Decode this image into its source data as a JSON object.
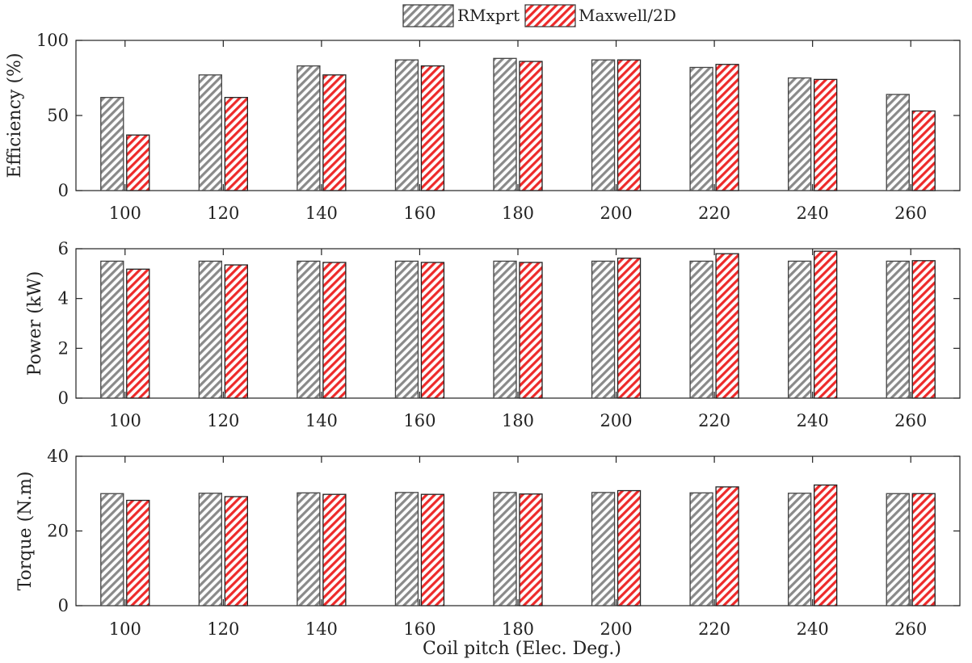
{
  "legend": {
    "items": [
      {
        "label": "RMxprt",
        "color": "#7a7a7a",
        "fill": "gray-hatch"
      },
      {
        "label": "Maxwell/2D",
        "color": "#ee2a2a",
        "fill": "red-hatch"
      }
    ],
    "placement": "top-center"
  },
  "xlabel": "Coil pitch (Elec. Deg.)",
  "chart_data": [
    {
      "type": "bar",
      "ylabel": "Efficiency (%)",
      "categories": [
        "100",
        "120",
        "140",
        "160",
        "180",
        "200",
        "220",
        "240",
        "260"
      ],
      "ylim": [
        0,
        100
      ],
      "yticks": [
        "0",
        "50",
        "100"
      ],
      "series": [
        {
          "name": "RMxprt",
          "values": [
            62,
            77,
            83,
            87,
            88,
            87,
            82,
            75,
            64
          ]
        },
        {
          "name": "Maxwell/2D",
          "values": [
            37,
            62,
            77,
            83,
            86,
            87,
            84,
            74,
            53
          ]
        }
      ]
    },
    {
      "type": "bar",
      "ylabel": "Power (kW)",
      "categories": [
        "100",
        "120",
        "140",
        "160",
        "180",
        "200",
        "220",
        "240",
        "260"
      ],
      "ylim": [
        0,
        6
      ],
      "yticks": [
        "0",
        "2",
        "4",
        "6"
      ],
      "series": [
        {
          "name": "RMxprt",
          "values": [
            5.5,
            5.5,
            5.5,
            5.5,
            5.5,
            5.5,
            5.5,
            5.5,
            5.5
          ]
        },
        {
          "name": "Maxwell/2D",
          "values": [
            5.18,
            5.35,
            5.45,
            5.45,
            5.45,
            5.62,
            5.8,
            5.9,
            5.52
          ]
        }
      ]
    },
    {
      "type": "bar",
      "ylabel": "Torque (N.m)",
      "categories": [
        "100",
        "120",
        "140",
        "160",
        "180",
        "200",
        "220",
        "240",
        "260"
      ],
      "ylim": [
        0,
        40
      ],
      "yticks": [
        "0",
        "20",
        "40"
      ],
      "series": [
        {
          "name": "RMxprt",
          "values": [
            30,
            30.1,
            30.2,
            30.3,
            30.3,
            30.3,
            30.2,
            30.1,
            30
          ]
        },
        {
          "name": "Maxwell/2D",
          "values": [
            28.2,
            29.2,
            29.8,
            29.8,
            29.9,
            30.8,
            31.8,
            32.3,
            30
          ]
        }
      ]
    }
  ]
}
